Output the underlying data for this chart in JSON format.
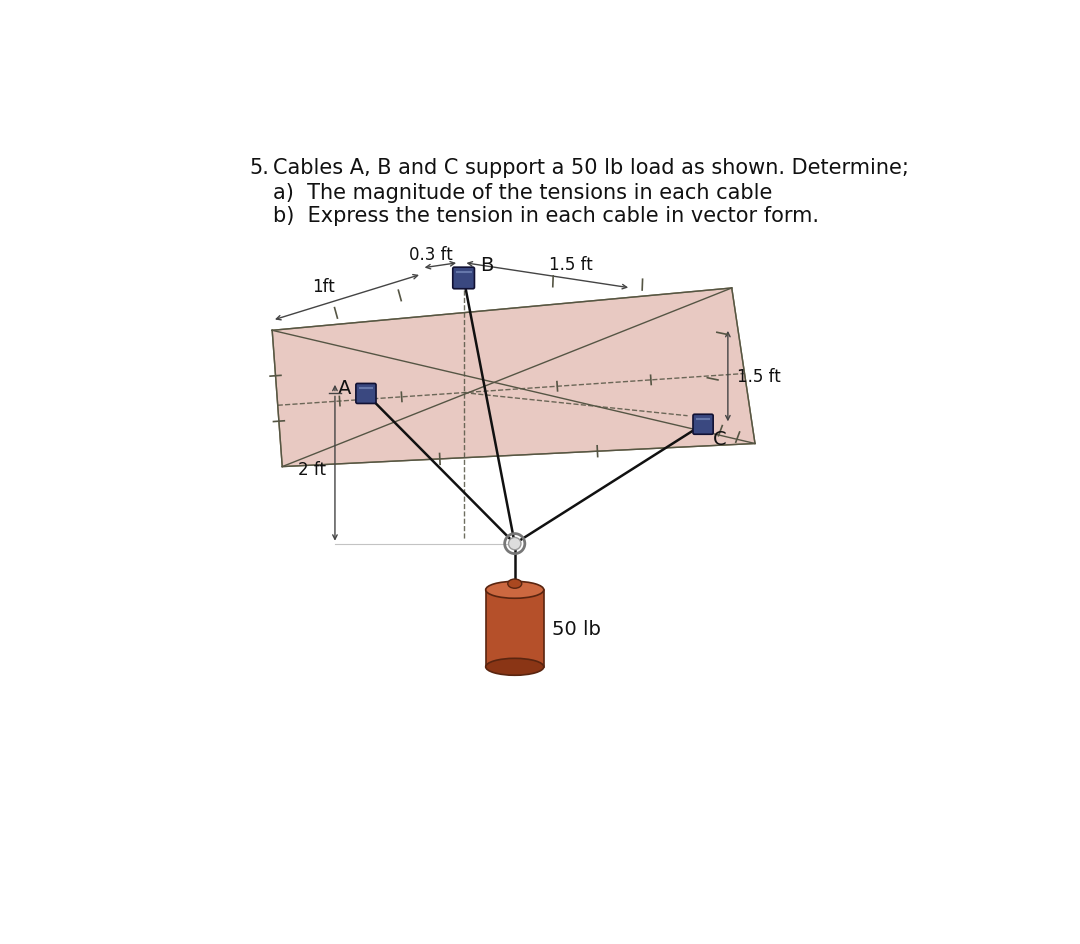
{
  "title_num": "5.",
  "title_line1": "Cables A, B and C support a 50 lb load as shown. Determine;",
  "title_line2a": "a)  The magnitude of the tensions in each cable",
  "title_line2b": "b)  Express the tension in each cable in vector form.",
  "bg_color": "#ffffff",
  "plate_color": "#cc8878",
  "plate_alpha": 0.45,
  "cable_color": "#111111",
  "dim_color": "#444444",
  "label_A": "A",
  "label_B": "B",
  "label_C": "C",
  "dim_03ft": "0.3 ft",
  "dim_1ft": "1ft",
  "dim_15ft_top": "1.5 ft",
  "dim_15ft_right": "1.5 ft",
  "dim_2ft": "2 ft",
  "weight_label": "50 lb",
  "clip_color": "#3a4070",
  "text_fontsize": 15,
  "dim_fontsize": 12,
  "label_fontsize": 13
}
